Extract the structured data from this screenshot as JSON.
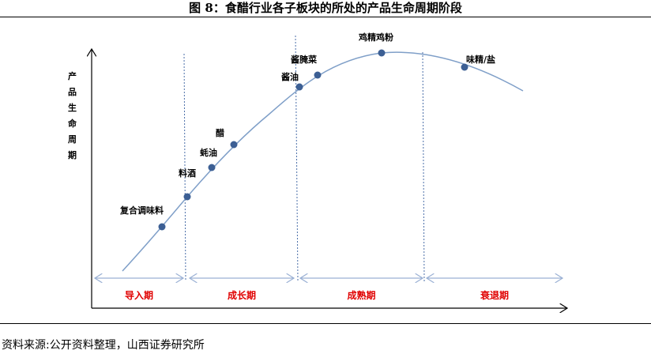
{
  "title": "图 8：食醋行业各子板块的所处的产品生命周期阶段",
  "y_axis_label": [
    "产",
    "品",
    "生",
    "命",
    "周",
    "期"
  ],
  "stages": [
    "导入期",
    "成长期",
    "成熟期",
    "衰退期"
  ],
  "products": [
    {
      "name": "复合调味料",
      "stage": "导入期"
    },
    {
      "name": "料酒",
      "stage": "成长期"
    },
    {
      "name": "蚝油",
      "stage": "成长期"
    },
    {
      "name": "醋",
      "stage": "成长期"
    },
    {
      "name": "酱油",
      "stage": "成熟期"
    },
    {
      "name": "酱腌菜",
      "stage": "成熟期"
    },
    {
      "name": "鸡精鸡粉",
      "stage": "成熟期"
    },
    {
      "name": "味精/盐",
      "stage": "衰退期"
    }
  ],
  "colors": {
    "curve": "#7f9fc8",
    "point": "#3c5f94",
    "stage_label": "#e00000",
    "stage_arrow": "#9ab0d4"
  },
  "source": "资料来源:公开资料整理，山西证券研究所"
}
